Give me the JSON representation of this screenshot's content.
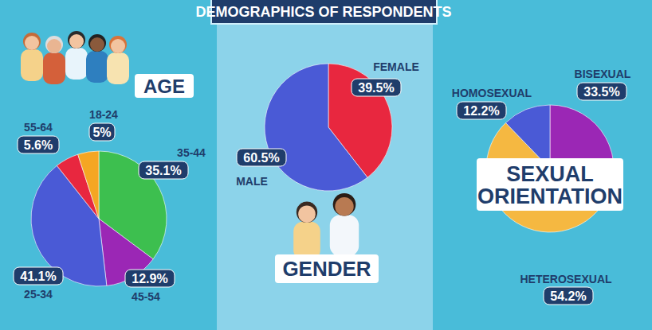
{
  "title": "DEMOGRAPHICS OF RESPONDENTS",
  "chart_data": [
    {
      "type": "pie",
      "title": "AGE",
      "categories": [
        "35-44",
        "45-54",
        "25-34",
        "55-64",
        "18-24"
      ],
      "values": [
        35.1,
        12.9,
        41.1,
        5.6,
        5
      ],
      "value_labels": [
        "35.1%",
        "12.9%",
        "41.1%",
        "5.6%",
        "5%"
      ],
      "colors": [
        "#3dbf4f",
        "#9b27b5",
        "#4a5ad6",
        "#e8273f",
        "#f5a623"
      ],
      "data_labels": true
    },
    {
      "type": "pie",
      "title": "GENDER",
      "categories": [
        "FEMALE",
        "MALE"
      ],
      "values": [
        39.5,
        60.5
      ],
      "value_labels": [
        "39.5%",
        "60.5%"
      ],
      "colors": [
        "#e8273f",
        "#4a5ad6"
      ],
      "data_labels": true
    },
    {
      "type": "pie",
      "title": "SEXUAL ORIENTATION",
      "categories": [
        "BISEXUAL",
        "HETEROSEXUAL",
        "HOMOSEXUAL"
      ],
      "values": [
        33.5,
        54.2,
        12.2
      ],
      "value_labels": [
        "33.5%",
        "54.2%",
        "12.2%"
      ],
      "colors": [
        "#9b27b5",
        "#f5b841",
        "#4a5ad6"
      ],
      "data_labels": true
    }
  ]
}
